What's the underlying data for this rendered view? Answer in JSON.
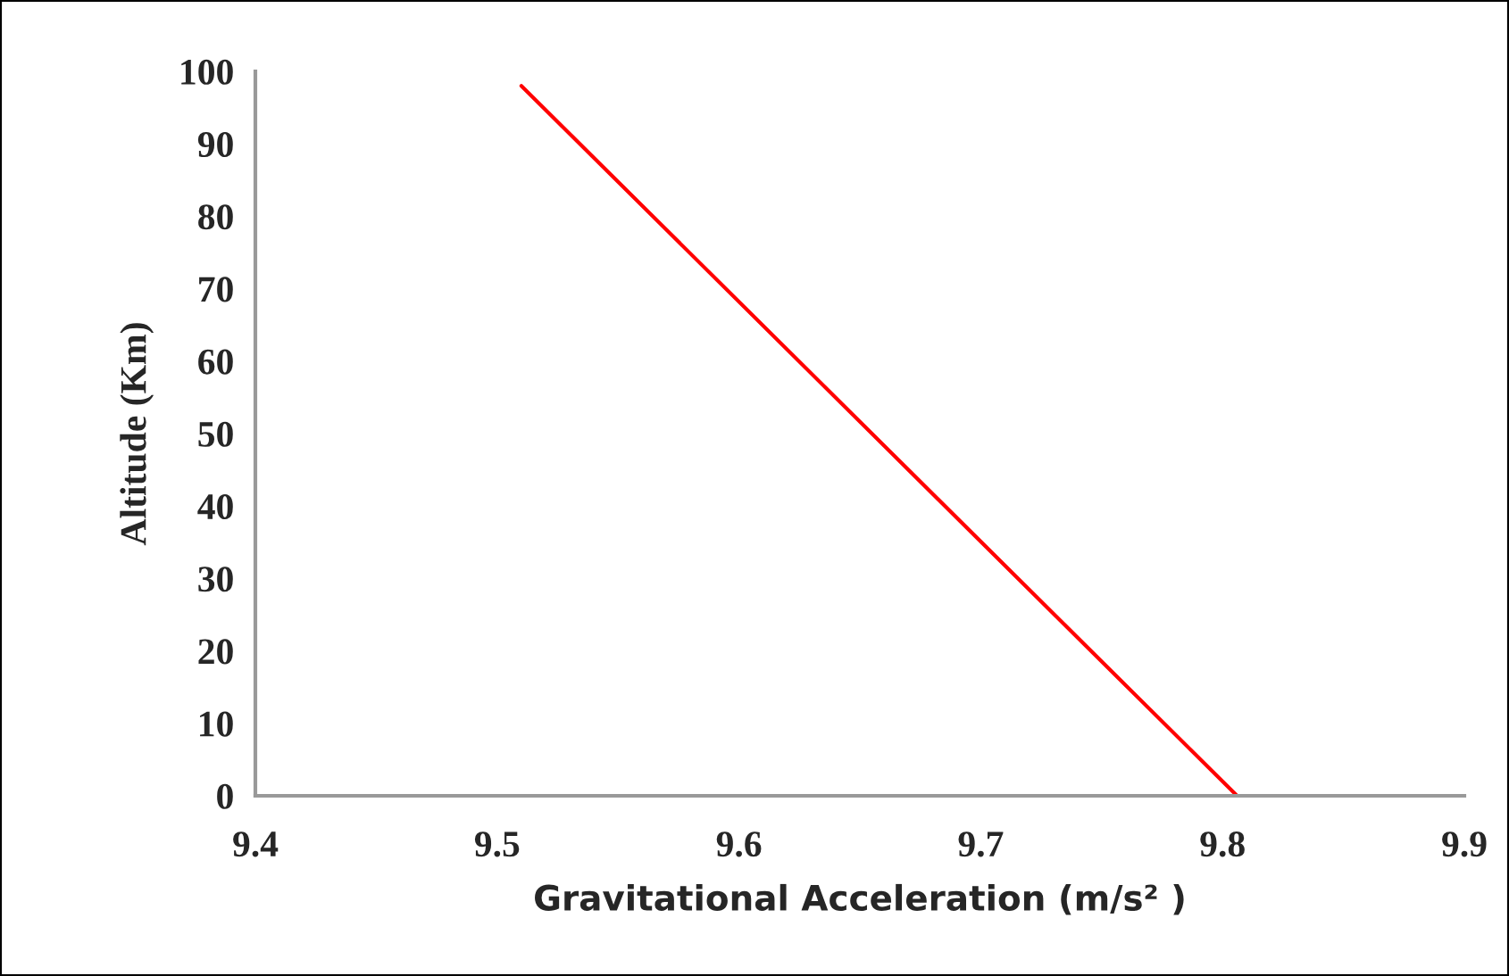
{
  "chart_data": {
    "type": "line",
    "xlabel": "Gravitational Acceleration (m/s² )",
    "ylabel": "Altitude (Km)",
    "series": [
      {
        "color": "#ff0000",
        "x": [
          9.51,
          9.806
        ],
        "values": [
          98,
          0
        ]
      }
    ],
    "xlim": [
      9.4,
      9.9
    ],
    "xticks": [
      9.4,
      9.5,
      9.6,
      9.7,
      9.8,
      9.9
    ],
    "ylim": [
      0,
      100
    ],
    "yticks": [
      0,
      10,
      20,
      30,
      40,
      50,
      60,
      70,
      80,
      90,
      100
    ],
    "grid": false,
    "legend": false,
    "marker": "none",
    "line_style": "solid"
  }
}
